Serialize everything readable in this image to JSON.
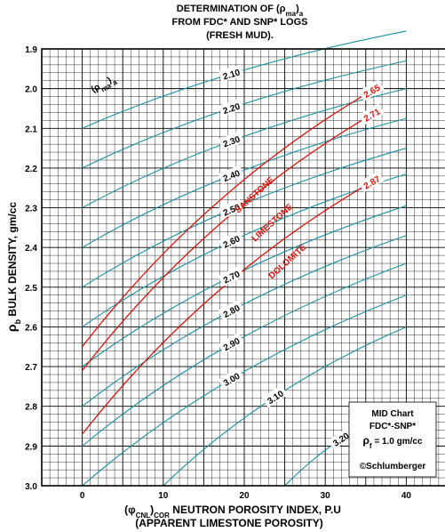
{
  "header": {
    "line1": "DETERMINATION OF (ρ",
    "line1_sub1": "ma",
    "line1_end": ")",
    "line1_sub2": "a",
    "line2": "FROM FDC* AND SNP* LOGS",
    "line3": "(FRESH MUD)."
  },
  "info_box": {
    "line1": "MID Chart",
    "line2": "FDC*-SNP*",
    "line3_rho": "ρ",
    "line3_sub": "f",
    "line3_rest": " = 1.0 gm/cc",
    "line4": "©Schlumberger"
  },
  "colors": {
    "cyan_curve": "#1a90a0",
    "red_curve": "#d8140c",
    "grid": "#000000"
  },
  "chart_data": {
    "type": "line",
    "x_axis": {
      "label_prefix": "(φ",
      "label_sub": "CNL",
      "label_mid": ")",
      "label_sub2": "COR",
      "label_rest": " NEUTRON POROSITY INDEX, P.U",
      "label_line2": "(APPARENT LIMESTONE POROSITY)",
      "range": [
        -5,
        45
      ],
      "ticks": [
        0,
        10,
        20,
        30,
        40
      ],
      "tick_labels": [
        "0",
        "10",
        "20",
        "30",
        "40"
      ]
    },
    "y_axis": {
      "label_rho": "ρ",
      "label_sub": "b",
      "label_rest": " BULK DENSITY, gm/cc",
      "range": [
        1.9,
        3.0
      ],
      "inverted": true,
      "ticks": [
        1.9,
        2.0,
        2.1,
        2.2,
        2.3,
        2.4,
        2.5,
        2.6,
        2.7,
        2.8,
        2.9,
        3.0
      ],
      "tick_labels": [
        "1.9",
        "2.0",
        "2.1",
        "2.2",
        "2.3",
        "2.4",
        "2.5",
        "2.6",
        "2.7",
        "2.8",
        "2.9",
        "3.0"
      ]
    },
    "grid": true,
    "parameter_label": {
      "rho": "(ρ",
      "sub": "ma",
      "end": ")",
      "sub2": "a"
    },
    "curves": [
      {
        "label": "2.10",
        "color": "cyan",
        "points": [
          [
            0,
            2.1
          ],
          [
            40,
            1.855
          ]
        ]
      },
      {
        "label": "2.20",
        "color": "cyan",
        "points": [
          [
            0,
            2.2
          ],
          [
            40,
            1.93
          ]
        ]
      },
      {
        "label": "2.30",
        "color": "cyan",
        "points": [
          [
            0,
            2.3
          ],
          [
            40,
            2.0
          ]
        ]
      },
      {
        "label": "2.40",
        "color": "cyan",
        "points": [
          [
            0,
            2.4
          ],
          [
            40,
            2.075
          ]
        ]
      },
      {
        "label": "2.50",
        "color": "cyan",
        "points": [
          [
            0,
            2.5
          ],
          [
            40,
            2.15
          ]
        ]
      },
      {
        "label": "2.60",
        "color": "cyan",
        "points": [
          [
            0,
            2.6
          ],
          [
            40,
            2.215
          ]
        ]
      },
      {
        "label": "2.65",
        "color": "red",
        "points": [
          [
            0,
            2.65
          ],
          [
            37,
            1.99
          ]
        ]
      },
      {
        "label": "2.70",
        "color": "cyan",
        "points": [
          [
            0,
            2.7
          ],
          [
            40,
            2.295
          ]
        ]
      },
      {
        "label": "2.71",
        "color": "red",
        "points": [
          [
            0,
            2.71
          ],
          [
            37,
            2.05
          ]
        ]
      },
      {
        "label": "2.80",
        "color": "cyan",
        "points": [
          [
            0,
            2.8
          ],
          [
            40,
            2.37
          ]
        ]
      },
      {
        "label": "2.87",
        "color": "red",
        "points": [
          [
            0,
            2.87
          ],
          [
            37,
            2.22
          ]
        ]
      },
      {
        "label": "2.90",
        "color": "cyan",
        "points": [
          [
            0,
            2.9
          ],
          [
            40,
            2.44
          ]
        ]
      },
      {
        "label": "3.00",
        "color": "cyan",
        "points": [
          [
            0,
            3.0
          ],
          [
            40,
            2.52
          ]
        ]
      },
      {
        "label": "3.10",
        "color": "cyan",
        "points": [
          [
            10,
            3.0
          ],
          [
            40,
            2.6
          ]
        ]
      },
      {
        "label": "3.20",
        "color": "cyan",
        "points": [
          [
            25,
            3.0
          ],
          [
            40,
            2.79
          ]
        ]
      }
    ],
    "lithology_labels": [
      "SANSTONE",
      "LIMESTONE",
      "DOLOMITE"
    ]
  }
}
